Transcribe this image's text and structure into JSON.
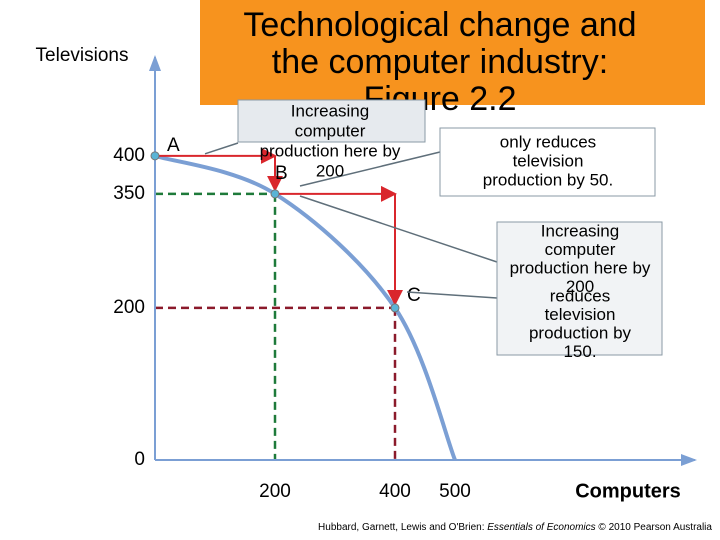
{
  "chart_data": {
    "type": "line",
    "title": [
      "Technological change and",
      "the computer industry:",
      "Figure 2.2"
    ],
    "y_label": "Televisions",
    "x_label": "Computers",
    "x": [
      0,
      200,
      400,
      500
    ],
    "values": [
      400,
      350,
      200,
      0
    ],
    "point_labels": [
      "A",
      "B",
      "C",
      null
    ],
    "color": "#7b9fd4",
    "xlim": [
      0,
      900
    ],
    "ylim": [
      0,
      530
    ],
    "xticks": [
      0,
      200,
      400,
      500
    ],
    "yticks": [
      0,
      200,
      350,
      400
    ],
    "annotations": [
      [
        "Increasing",
        "computer",
        "production here by",
        "200"
      ],
      [
        "only reduces",
        "television",
        "production by 50."
      ],
      [
        "Increasing",
        "computer",
        "production here by",
        "200",
        "reduces",
        "television",
        "production by",
        "150."
      ]
    ],
    "source": [
      "Hubbard, Garnett, Lewis and O'Brien: ",
      "Essentials of Economics",
      " © 2010 Pearson Australia"
    ]
  }
}
